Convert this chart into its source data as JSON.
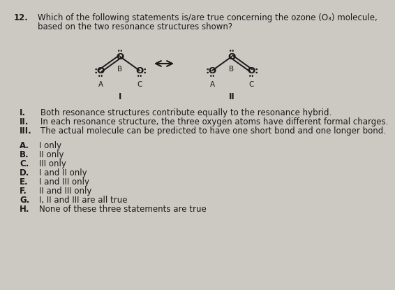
{
  "question_num": "12.",
  "question_text": "Which of the following statements is/are true concerning the ozone (O₃) molecule,",
  "question_text2": "based on the two resonance structures shown?",
  "bg_color": "#ccc9c2",
  "text_color": "#1a1a1a",
  "statements": [
    [
      "I.",
      "Both resonance structures contribute equally to the resonance hybrid."
    ],
    [
      "II.",
      "In each resonance structure, the three oxygen atoms have different formal charges."
    ],
    [
      "III.",
      "The actual molecule can be predicted to have one short bond and one longer bond."
    ]
  ],
  "choices": [
    [
      "A.",
      "I only"
    ],
    [
      "B.",
      "II only"
    ],
    [
      "C.",
      "III only"
    ],
    [
      "D.",
      "I and II only"
    ],
    [
      "E.",
      "I and III only"
    ],
    [
      "F.",
      "II and III only"
    ],
    [
      "G.",
      "I, II and III are all true"
    ],
    [
      "H.",
      "None of these three statements are true"
    ]
  ]
}
